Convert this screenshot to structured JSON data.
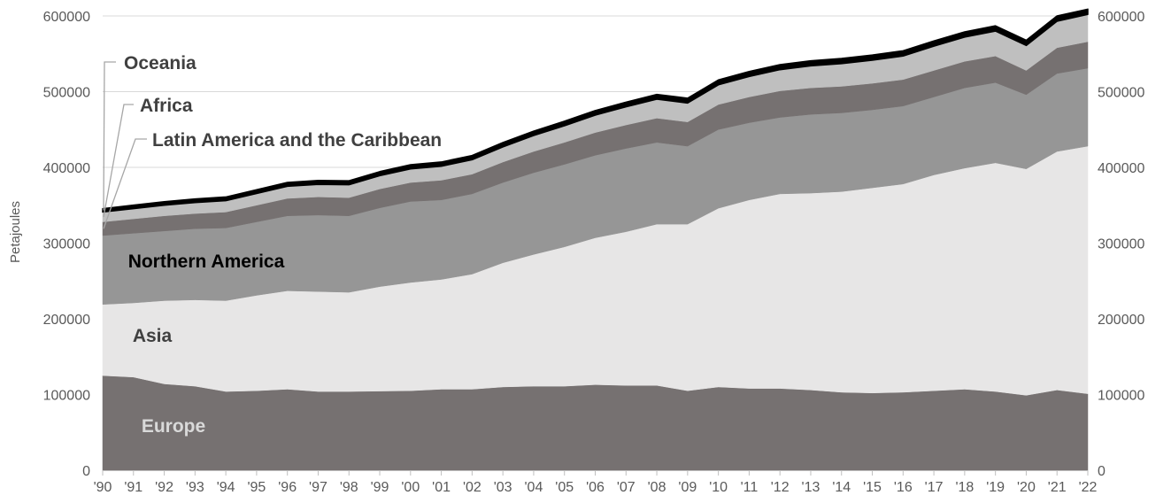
{
  "chart_data": {
    "type": "area",
    "stacked": true,
    "title": "",
    "xlabel": "",
    "ylabel": "Petajoules",
    "ylim": [
      0,
      600000
    ],
    "y_ticks": [
      "0",
      "100000",
      "200000",
      "300000",
      "400000",
      "500000",
      "600000"
    ],
    "secondary_y_axis": true,
    "grid": "horizontal",
    "legend": "inline labels",
    "categories": [
      "'90",
      "'91",
      "'92",
      "'93",
      "'94",
      "'95",
      "'96",
      "'97",
      "'98",
      "'99",
      "'00",
      "'01",
      "'02",
      "'03",
      "'04",
      "'05",
      "'06",
      "'07",
      "'08",
      "'09",
      "'10",
      "'11",
      "'12",
      "'13",
      "'14",
      "'15",
      "'16",
      "'17",
      "'18",
      "'19",
      "'20",
      "'21",
      "'22"
    ],
    "series": [
      {
        "name": "Europe",
        "color": "#767171",
        "values": [
          125000,
          123000,
          114000,
          111000,
          104000,
          105000,
          107000,
          104000,
          104000,
          104500,
          105000,
          107000,
          107000,
          110000,
          111000,
          111000,
          113000,
          112000,
          112000,
          105000,
          110000,
          108000,
          108000,
          106000,
          103000,
          102000,
          103000,
          105000,
          107000,
          104000,
          99000,
          106000,
          101000
        ]
      },
      {
        "name": "Asia",
        "color": "#e7e6e6",
        "values": [
          94000,
          98000,
          110000,
          114000,
          120000,
          126000,
          130000,
          132000,
          131000,
          138000,
          143000,
          145000,
          152000,
          164000,
          174000,
          184000,
          194000,
          203000,
          213000,
          220000,
          236000,
          249000,
          257000,
          260000,
          265000,
          271000,
          275000,
          285000,
          292000,
          302000,
          299000,
          315000,
          327000
        ]
      },
      {
        "name": "Northern America",
        "color": "#969696",
        "values": [
          91000,
          92000,
          92000,
          94000,
          96000,
          97000,
          99000,
          101000,
          101000,
          104000,
          107000,
          105000,
          106000,
          106000,
          108000,
          109000,
          109000,
          110000,
          108000,
          103000,
          104000,
          102000,
          101000,
          104000,
          104000,
          103000,
          103000,
          103000,
          106000,
          106000,
          98000,
          103000,
          103000
        ]
      },
      {
        "name": "Latin America and the Caribbean",
        "color": "#767171",
        "values": [
          18000,
          19000,
          20000,
          20000,
          21000,
          22000,
          23000,
          24000,
          24000,
          25000,
          25000,
          26000,
          26000,
          27000,
          28000,
          29000,
          30000,
          31000,
          32000,
          32000,
          33000,
          34000,
          35000,
          35000,
          35000,
          35000,
          35000,
          35000,
          35000,
          35000,
          32000,
          34000,
          35000
        ]
      },
      {
        "name": "Africa",
        "color": "#bfbfbf",
        "values": [
          13000,
          13500,
          14000,
          14500,
          15000,
          15500,
          16000,
          16500,
          17000,
          17500,
          18000,
          18500,
          19000,
          20000,
          21000,
          22000,
          23000,
          24000,
          25000,
          25000,
          26000,
          27000,
          28000,
          29000,
          30000,
          30500,
          31000,
          32000,
          32000,
          33000,
          33000,
          35000,
          36000
        ]
      },
      {
        "name": "Oceania",
        "color": "#000000",
        "values": [
          4500,
          4600,
          4700,
          4800,
          4900,
          5000,
          5100,
          5200,
          5300,
          5400,
          5500,
          5600,
          5700,
          5800,
          5900,
          6000,
          6100,
          6200,
          6300,
          6400,
          6500,
          6600,
          6700,
          6800,
          6900,
          6900,
          7000,
          7000,
          7000,
          7000,
          6900,
          7000,
          7000
        ]
      }
    ],
    "label_colors": {
      "Europe": "#d9d9d9",
      "Asia": "#404040",
      "Northern America": "#000000",
      "Latin America and the Caribbean": "#404040",
      "Africa": "#404040",
      "Oceania": "#404040"
    }
  }
}
